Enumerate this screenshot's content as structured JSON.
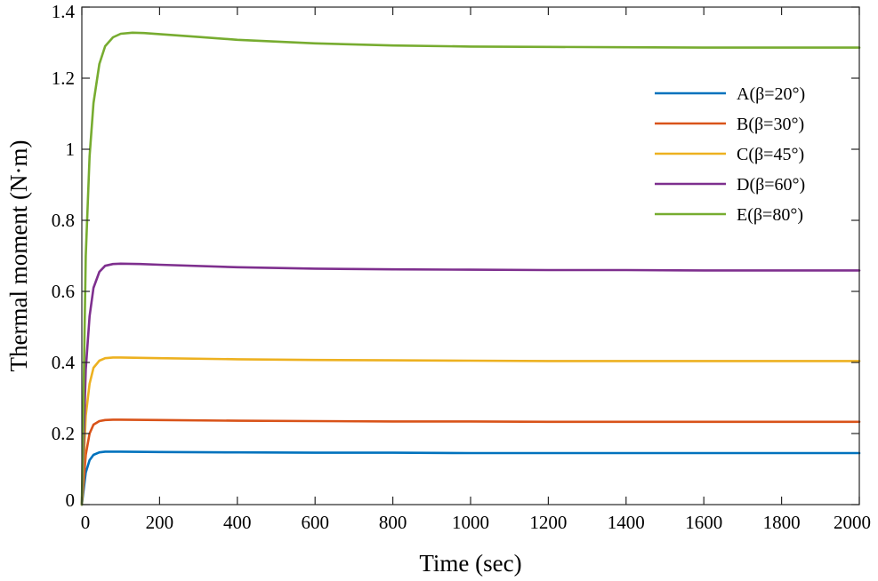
{
  "chart_data": {
    "type": "line",
    "xlabel": "Time (sec)",
    "ylabel": "Thermal moment (N·m)",
    "xlim": [
      0,
      2000
    ],
    "ylim": [
      0,
      1.4
    ],
    "xticks": [
      0,
      200,
      400,
      600,
      800,
      1000,
      1200,
      1400,
      1600,
      1800,
      2000
    ],
    "yticks": [
      0,
      0.2,
      0.4,
      0.6,
      0.8,
      1,
      1.2,
      1.4
    ],
    "xtick_labels": [
      "0",
      "200",
      "400",
      "600",
      "800",
      "1000",
      "1200",
      "1400",
      "1600",
      "1800",
      "2000"
    ],
    "ytick_labels": [
      "0",
      "0.2",
      "0.4",
      "0.6",
      "0.8",
      "1",
      "1.2",
      "1.4"
    ],
    "grid": false,
    "legend_position": "top-right",
    "series": [
      {
        "name": "A(β=20°)",
        "color": "#0072BD",
        "x": [
          0,
          10,
          20,
          30,
          45,
          60,
          100,
          200,
          400,
          600,
          800,
          1000,
          1200,
          1400,
          1600,
          1800,
          2000
        ],
        "y": [
          0,
          0.09,
          0.125,
          0.14,
          0.147,
          0.149,
          0.149,
          0.148,
          0.147,
          0.146,
          0.146,
          0.145,
          0.145,
          0.145,
          0.145,
          0.145,
          0.145
        ]
      },
      {
        "name": "B(β=30°)",
        "color": "#D95319",
        "x": [
          0,
          10,
          20,
          30,
          45,
          60,
          80,
          100,
          200,
          400,
          600,
          800,
          1000,
          1200,
          1400,
          1600,
          1800,
          2000
        ],
        "y": [
          0,
          0.14,
          0.2,
          0.225,
          0.235,
          0.238,
          0.239,
          0.239,
          0.238,
          0.236,
          0.235,
          0.234,
          0.234,
          0.233,
          0.233,
          0.233,
          0.233,
          0.233
        ]
      },
      {
        "name": "C(β=45°)",
        "color": "#EDB120",
        "x": [
          0,
          10,
          20,
          30,
          45,
          60,
          80,
          100,
          200,
          400,
          600,
          800,
          1000,
          1200,
          1400,
          1600,
          1800,
          2000
        ],
        "y": [
          0,
          0.25,
          0.34,
          0.385,
          0.405,
          0.412,
          0.414,
          0.414,
          0.412,
          0.409,
          0.407,
          0.406,
          0.405,
          0.404,
          0.404,
          0.404,
          0.404,
          0.404
        ]
      },
      {
        "name": "D(β=60°)",
        "color": "#7E2F8E",
        "x": [
          0,
          10,
          20,
          30,
          45,
          60,
          80,
          100,
          150,
          200,
          400,
          600,
          800,
          1000,
          1200,
          1400,
          1600,
          1800,
          2000
        ],
        "y": [
          0,
          0.38,
          0.53,
          0.61,
          0.655,
          0.672,
          0.677,
          0.678,
          0.677,
          0.675,
          0.668,
          0.664,
          0.662,
          0.661,
          0.66,
          0.66,
          0.659,
          0.659,
          0.659
        ]
      },
      {
        "name": "E(β=80°)",
        "color": "#77AC30",
        "x": [
          0,
          10,
          20,
          30,
          45,
          60,
          80,
          100,
          130,
          160,
          200,
          300,
          400,
          600,
          800,
          1000,
          1200,
          1400,
          1600,
          1800,
          2000
        ],
        "y": [
          0,
          0.7,
          0.98,
          1.13,
          1.24,
          1.29,
          1.315,
          1.325,
          1.328,
          1.327,
          1.324,
          1.316,
          1.308,
          1.298,
          1.292,
          1.289,
          1.288,
          1.287,
          1.286,
          1.286,
          1.286
        ]
      }
    ]
  }
}
